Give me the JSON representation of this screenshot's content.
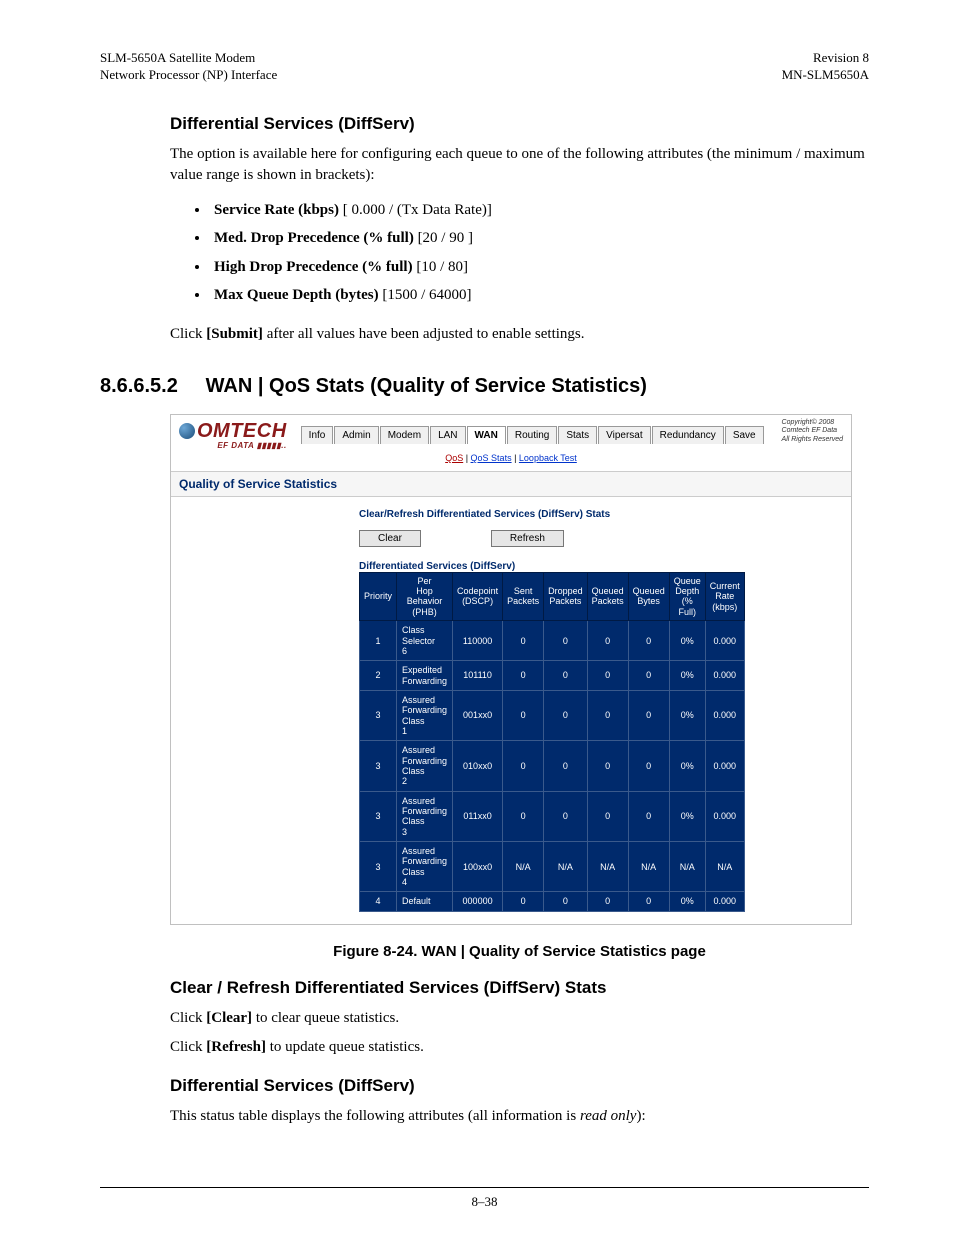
{
  "header": {
    "left1": "SLM-5650A Satellite Modem",
    "left2": "Network Processor (NP) Interface",
    "right1": "Revision 8",
    "right2": "MN-SLM5650A"
  },
  "section1": {
    "title": "Differential Services (DiffServ)",
    "intro": "The option is available here for configuring each queue to one of the following attributes (the minimum / maximum value range is shown in brackets):",
    "bullets": [
      {
        "label": "Service Rate (kbps)",
        "rest": " [ 0.000 / (Tx Data Rate)]"
      },
      {
        "label": "Med. Drop Precedence (% full)",
        "rest": " [20 / 90 ]"
      },
      {
        "label": "High Drop Precedence (% full)",
        "rest": " [10 / 80]"
      },
      {
        "label": "Max Queue Depth (bytes)",
        "rest": " [1500 / 64000]"
      }
    ],
    "after1": "Click ",
    "after_strong": "[Submit]",
    "after2": " after all values have been adjusted to enable settings."
  },
  "h2": {
    "num": "8.6.6.5.2",
    "title": "WAN | QoS Stats (Quality of Service Statistics)"
  },
  "screenshot": {
    "logo_main": "OMTECH",
    "logo_sub": "EF DATA ▮▮▮▮▮..",
    "tabs": [
      "Info",
      "Admin",
      "Modem",
      "LAN",
      "WAN",
      "Routing",
      "Stats",
      "Vipersat",
      "Redundancy",
      "Save"
    ],
    "active_tab": "WAN",
    "subtabs": {
      "qos": "QoS",
      "stats": "QoS Stats",
      "loop": "Loopback Test"
    },
    "copyright": [
      "Copyright© 2008",
      "Comtech EF Data",
      "All Rights Reserved"
    ],
    "section_title": "Quality of Service Statistics",
    "label1": "Clear/Refresh Differentiated Services (DiffServ) Stats",
    "btn_clear": "Clear",
    "btn_refresh": "Refresh",
    "label2": "Differentiated Services (DiffServ)",
    "table": {
      "headers": [
        "Priority",
        "Per Hop Behavior (PHB)",
        "Codepoint (DSCP)",
        "Sent Packets",
        "Dropped Packets",
        "Queued Packets",
        "Queued Bytes",
        "Queue Depth (% Full)",
        "Current Rate (kbps)"
      ],
      "rows": [
        [
          "1",
          "Class Selector 6",
          "110000",
          "0",
          "0",
          "0",
          "0",
          "0%",
          "0.000"
        ],
        [
          "2",
          "Expedited Forwarding",
          "101110",
          "0",
          "0",
          "0",
          "0",
          "0%",
          "0.000"
        ],
        [
          "3",
          "Assured Forwarding Class 1",
          "001xx0",
          "0",
          "0",
          "0",
          "0",
          "0%",
          "0.000"
        ],
        [
          "3",
          "Assured Forwarding Class 2",
          "010xx0",
          "0",
          "0",
          "0",
          "0",
          "0%",
          "0.000"
        ],
        [
          "3",
          "Assured Forwarding Class 3",
          "011xx0",
          "0",
          "0",
          "0",
          "0",
          "0%",
          "0.000"
        ],
        [
          "3",
          "Assured Forwarding Class 4",
          "100xx0",
          "N/A",
          "N/A",
          "N/A",
          "N/A",
          "N/A",
          "N/A"
        ],
        [
          "4",
          "Default",
          "000000",
          "0",
          "0",
          "0",
          "0",
          "0%",
          "0.000"
        ]
      ]
    }
  },
  "figure_caption": "Figure 8-24. WAN | Quality of Service Statistics page",
  "section2": {
    "title": "Clear / Refresh Differentiated Services (DiffServ) Stats",
    "line1a": "Click ",
    "line1b": "[Clear]",
    "line1c": " to clear queue statistics.",
    "line2a": "Click ",
    "line2b": "[Refresh]",
    "line2c": " to update queue statistics."
  },
  "section3": {
    "title": "Differential Services (DiffServ)",
    "line_a": "This status table displays the following attributes (all information is ",
    "line_em": "read only",
    "line_b": "):"
  },
  "footer": "8–38"
}
